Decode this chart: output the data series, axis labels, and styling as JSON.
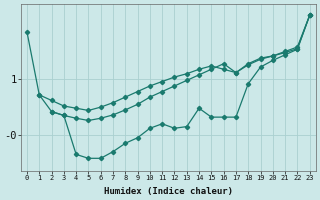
{
  "xlabel": "Humidex (Indice chaleur)",
  "bg_color": "#cce8e8",
  "line_color": "#1a7a6e",
  "grid_color": "#aad0d0",
  "xlim": [
    -0.5,
    23.5
  ],
  "ylim": [
    -0.65,
    2.35
  ],
  "yticks": [
    0,
    1
  ],
  "ytick_labels": [
    "-0",
    "1"
  ],
  "xticks": [
    0,
    1,
    2,
    3,
    4,
    5,
    6,
    7,
    8,
    9,
    10,
    11,
    12,
    13,
    14,
    15,
    16,
    17,
    18,
    19,
    20,
    21,
    22,
    23
  ],
  "line1_x": [
    0,
    1,
    2,
    3,
    4,
    5,
    6,
    7,
    8,
    9,
    10,
    11,
    12,
    13,
    14,
    15,
    16,
    17,
    18,
    19,
    20,
    21,
    22,
    23
  ],
  "line1_y": [
    1.85,
    0.72,
    0.62,
    0.52,
    0.48,
    0.44,
    0.5,
    0.58,
    0.68,
    0.78,
    0.88,
    0.96,
    1.04,
    1.1,
    1.18,
    1.24,
    1.18,
    1.12,
    1.28,
    1.38,
    1.42,
    1.48,
    1.55,
    2.15
  ],
  "line2_x": [
    1,
    2,
    3,
    4,
    5,
    6,
    7,
    8,
    9,
    10,
    11,
    12,
    13,
    14,
    15,
    16,
    17,
    18,
    19,
    20,
    21,
    22,
    23
  ],
  "line2_y": [
    0.72,
    0.42,
    0.35,
    0.3,
    0.26,
    0.3,
    0.36,
    0.45,
    0.55,
    0.68,
    0.78,
    0.88,
    0.98,
    1.08,
    1.18,
    1.28,
    1.12,
    1.26,
    1.36,
    1.42,
    1.5,
    1.58,
    2.15
  ],
  "line3_x": [
    2,
    3,
    4,
    5,
    6,
    7,
    8,
    9,
    10,
    11,
    12,
    13,
    14,
    15,
    16,
    17,
    18,
    19,
    20,
    21,
    22,
    23
  ],
  "line3_y": [
    0.42,
    0.35,
    -0.35,
    -0.42,
    -0.42,
    -0.3,
    -0.15,
    -0.05,
    0.12,
    0.2,
    0.12,
    0.15,
    0.48,
    0.32,
    0.32,
    0.32,
    0.92,
    1.22,
    1.34,
    1.44,
    1.54,
    2.15
  ]
}
